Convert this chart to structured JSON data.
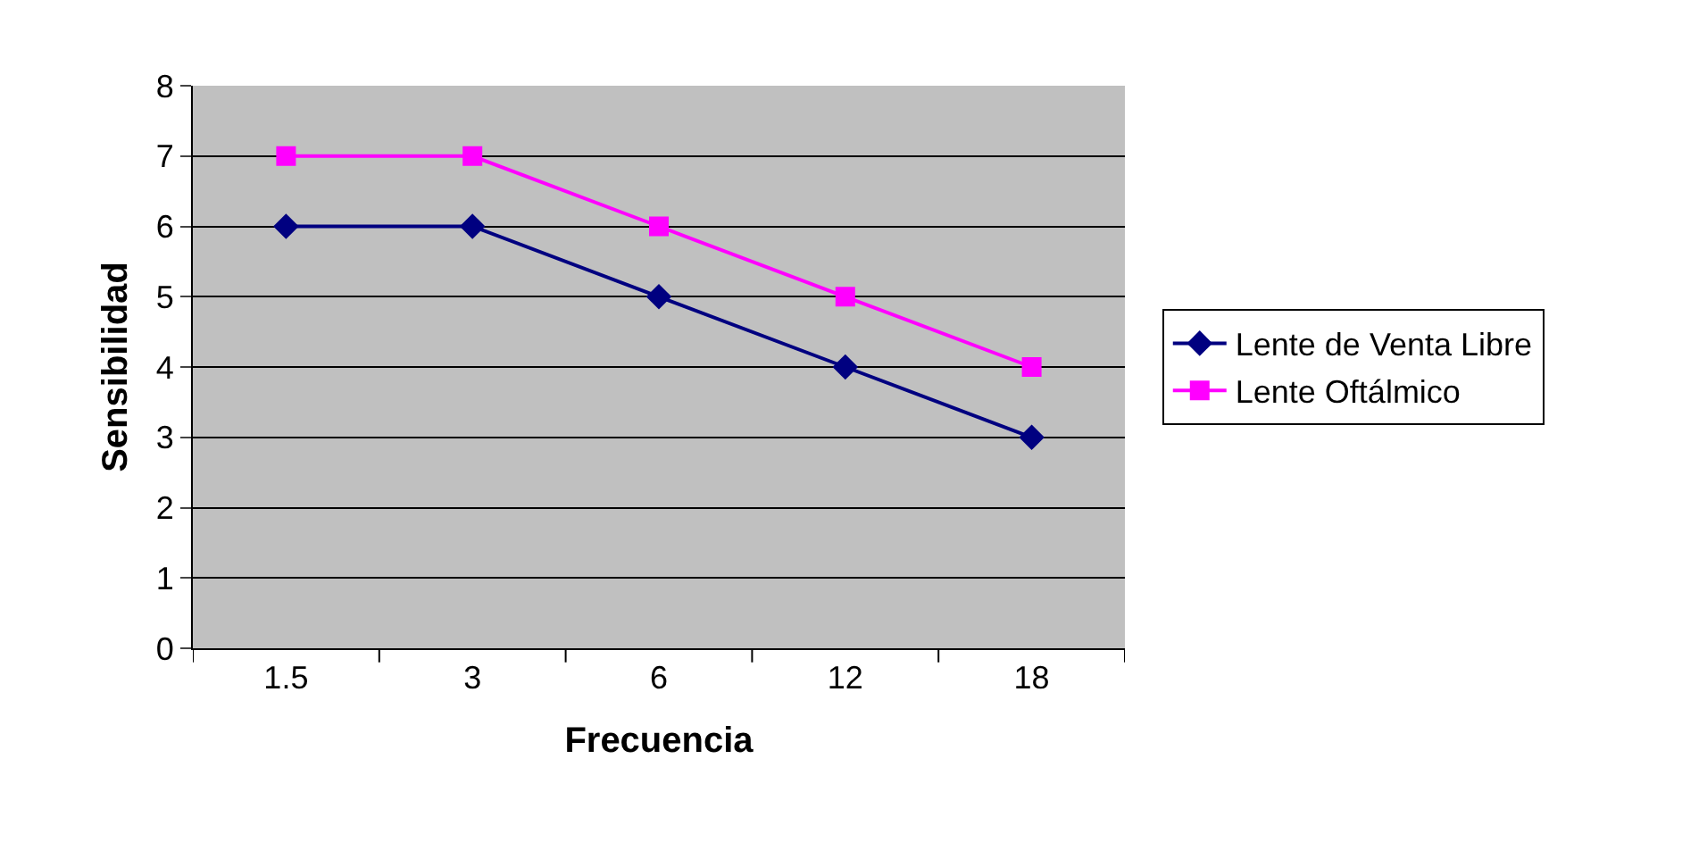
{
  "chart_data": {
    "type": "line",
    "xlabel": "Frecuencia",
    "ylabel": "Sensibilidad",
    "categories": [
      "1.5",
      "3",
      "6",
      "12",
      "18"
    ],
    "series": [
      {
        "name": "Lente de Venta Libre",
        "color": "#000080",
        "marker": "diamond",
        "values": [
          6,
          6,
          5,
          4,
          3
        ]
      },
      {
        "name": "Lente Oftálmico",
        "color": "#ff00ff",
        "marker": "square",
        "values": [
          7,
          7,
          6,
          5,
          4
        ]
      }
    ],
    "ylim": [
      0,
      8
    ],
    "yticks": [
      0,
      1,
      2,
      3,
      4,
      5,
      6,
      7,
      8
    ],
    "grid": "y",
    "legend": "right",
    "line_style": "solid"
  }
}
